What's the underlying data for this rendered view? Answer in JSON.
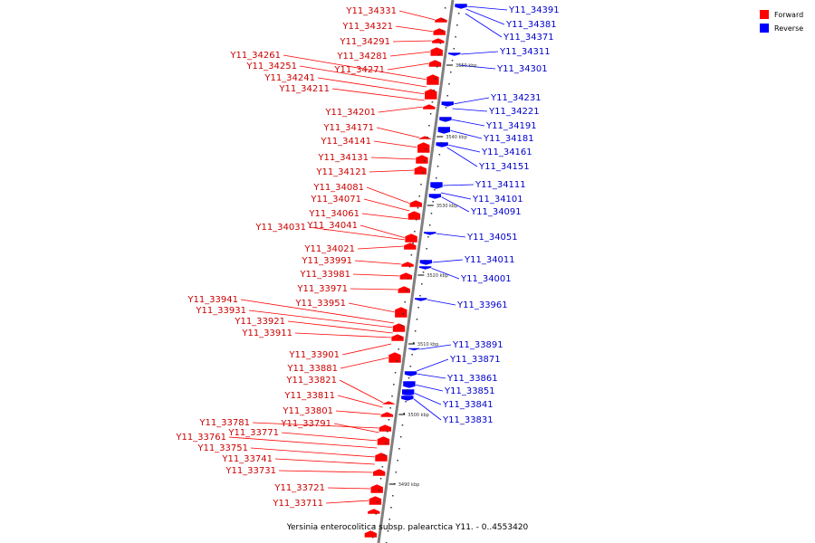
{
  "caption": "Yersinia enterocolitica subsp. palearctica Y11. - 0..4553420",
  "legend": {
    "forward": "Forward",
    "reverse": "Reverse"
  },
  "colors": {
    "forward": "#ff0000",
    "forward_label": "#cc0000",
    "reverse": "#0000ff",
    "reverse_label": "#0000cc",
    "backbone": "#808080",
    "tick": "#000000"
  },
  "forward_genes": [
    "Y11_34331",
    "Y11_34321",
    "Y11_34291",
    "Y11_34281",
    "Y11_34261",
    "Y11_34271",
    "Y11_34251",
    "Y11_34241",
    "Y11_34211",
    "Y11_34201",
    "Y11_34171",
    "Y11_34141",
    "Y11_34131",
    "Y11_34121",
    "Y11_34081",
    "Y11_34071",
    "Y11_34061",
    "Y11_34041",
    "Y11_34031",
    "Y11_34021",
    "Y11_33991",
    "Y11_33981",
    "Y11_33971",
    "Y11_33951",
    "Y11_33941",
    "Y11_33931",
    "Y11_33921",
    "Y11_33911",
    "Y11_33901",
    "Y11_33881",
    "Y11_33821",
    "Y11_33811",
    "Y11_33801",
    "Y11_33781",
    "Y11_33791",
    "Y11_33771",
    "Y11_33761",
    "Y11_33751",
    "Y11_33741",
    "Y11_33731",
    "Y11_33721",
    "Y11_33711"
  ],
  "reverse_genes": [
    "Y11_34391",
    "Y11_34381",
    "Y11_34371",
    "Y11_34311",
    "Y11_34301",
    "Y11_34231",
    "Y11_34221",
    "Y11_34191",
    "Y11_34181",
    "Y11_34161",
    "Y11_34151",
    "Y11_34111",
    "Y11_34101",
    "Y11_34091",
    "Y11_34051",
    "Y11_34011",
    "Y11_34001",
    "Y11_33961",
    "Y11_33891",
    "Y11_33871",
    "Y11_33861",
    "Y11_33851",
    "Y11_33841",
    "Y11_33831"
  ],
  "ticks": [
    "3550 kbp",
    "3540 kbp",
    "3530 kbp",
    "3520 kbp",
    "3510 kbp",
    "3500 kbp",
    "3490 kbp"
  ]
}
